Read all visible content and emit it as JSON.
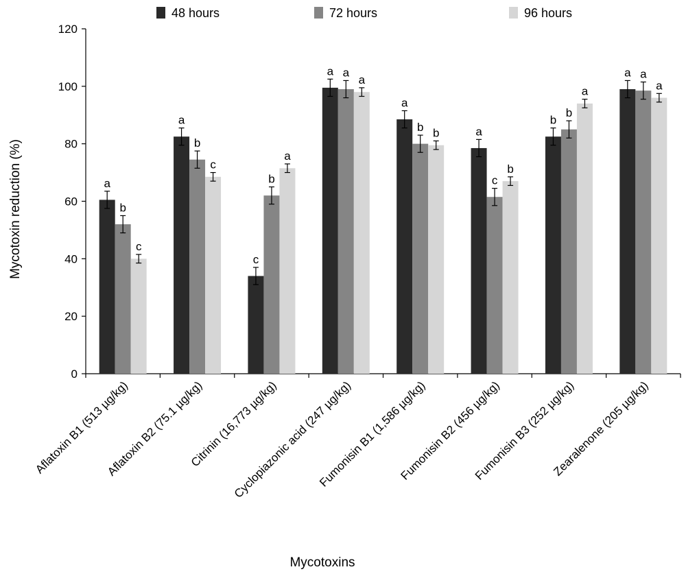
{
  "chart_data": {
    "type": "bar",
    "title": "",
    "xlabel": "Mycotoxins",
    "ylabel": "Mycotoxin reduction (%)",
    "ylim": [
      0,
      120
    ],
    "yticks": [
      0,
      20,
      40,
      60,
      80,
      100,
      120
    ],
    "grid": false,
    "legend_position": "top",
    "categories": [
      "Aflatoxin B1 (513 µg/kg)",
      "Aflatoxin B2 (75.1 µg/kg)",
      "Citrinin (16,773 µg/kg)",
      "Cyclopiazonic acid (247 µg/kg)",
      "Fumonisin B1 (1,586 µg/kg)",
      "Fumonisin B2 (456 µg/kg)",
      "Fumonisin B3 (252 µg/kg)",
      "Zearalenone (205 µg/kg)"
    ],
    "series": [
      {
        "name": "48 hours",
        "color": "#2a2a2a",
        "values": [
          60.5,
          82.5,
          34,
          99.5,
          88.5,
          78.5,
          82.5,
          99
        ],
        "errors": [
          3,
          3,
          3,
          3,
          3,
          3,
          3,
          3
        ],
        "labels": [
          "a",
          "a",
          "c",
          "a",
          "a",
          "a",
          "b",
          "a"
        ]
      },
      {
        "name": "72 hours",
        "color": "#858585",
        "values": [
          52,
          74.5,
          62,
          99,
          80,
          61.5,
          85,
          98.5
        ],
        "errors": [
          3,
          3,
          3,
          3,
          3,
          3,
          3,
          3
        ],
        "labels": [
          "b",
          "b",
          "b",
          "a",
          "b",
          "c",
          "b",
          "a"
        ]
      },
      {
        "name": "96 hours",
        "color": "#d6d6d6",
        "values": [
          40,
          68.5,
          71.5,
          98,
          79.5,
          67,
          94,
          96
        ],
        "errors": [
          1.5,
          1.5,
          1.5,
          1.5,
          1.5,
          1.5,
          1.5,
          1.5
        ],
        "labels": [
          "c",
          "c",
          "a",
          "a",
          "b",
          "b",
          "a",
          "a"
        ]
      }
    ]
  }
}
